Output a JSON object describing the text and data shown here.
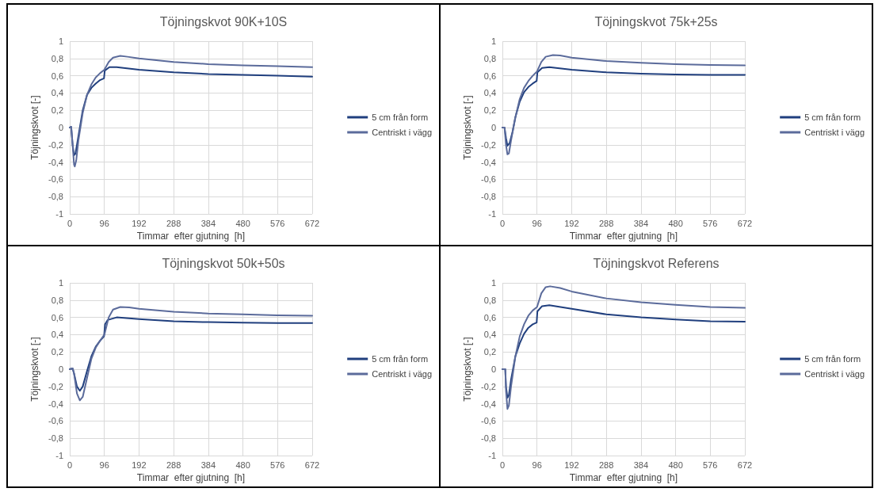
{
  "chart_data": [
    {
      "type": "line",
      "title": "Töjningskvot 90K+10S",
      "xlabel": "Timmar  efter gjutning  [h]",
      "ylabel": "Töjningskvot [-]",
      "xlim": [
        0,
        672
      ],
      "xticks": [
        0,
        96,
        192,
        288,
        384,
        480,
        576,
        672
      ],
      "ylim": [
        -1,
        1
      ],
      "yticks": [
        -1,
        {
          "value": -0.8,
          "label": "-0,8"
        },
        {
          "value": -0.6,
          "label": "-0,6"
        },
        {
          "value": -0.4,
          "label": "-0,4"
        },
        {
          "value": -0.2,
          "label": "-0,2"
        },
        0,
        {
          "value": 0.2,
          "label": "0,2"
        },
        {
          "value": 0.4,
          "label": "0,4"
        },
        {
          "value": 0.6,
          "label": "0,6"
        },
        {
          "value": 0.8,
          "label": "0,8"
        },
        1
      ],
      "grid": true,
      "legend": "right",
      "marker": "none",
      "line_style": "solid",
      "series": [
        {
          "name": "5 cm från form",
          "color": "#203f7e",
          "x": [
            0,
            4,
            8,
            12,
            16,
            24,
            36,
            48,
            60,
            72,
            84,
            95,
            97,
            110,
            130,
            192,
            288,
            384,
            480,
            576,
            672
          ],
          "values": [
            0,
            0.01,
            -0.2,
            -0.32,
            -0.3,
            -0.1,
            0.2,
            0.38,
            0.46,
            0.51,
            0.55,
            0.57,
            0.66,
            0.7,
            0.7,
            0.67,
            0.64,
            0.62,
            0.61,
            0.6,
            0.59
          ]
        },
        {
          "name": "Centriskt i vägg",
          "color": "#5b6b9b",
          "x": [
            0,
            4,
            8,
            12,
            14,
            18,
            24,
            36,
            48,
            60,
            72,
            84,
            96,
            108,
            120,
            140,
            160,
            192,
            288,
            384,
            480,
            576,
            672
          ],
          "values": [
            0,
            0.01,
            -0.2,
            -0.43,
            -0.45,
            -0.38,
            -0.15,
            0.17,
            0.38,
            0.5,
            0.58,
            0.63,
            0.67,
            0.76,
            0.81,
            0.83,
            0.82,
            0.8,
            0.76,
            0.735,
            0.72,
            0.71,
            0.7
          ]
        }
      ]
    },
    {
      "type": "line",
      "title": "Töjningskvot 75k+25s",
      "xlabel": "Timmar  efter gjutning  [h]",
      "ylabel": "Töjningskvot [-]",
      "xlim": [
        0,
        672
      ],
      "xticks": [
        0,
        96,
        192,
        288,
        384,
        480,
        576,
        672
      ],
      "ylim": [
        -1,
        1
      ],
      "yticks": [
        -1,
        {
          "value": -0.8,
          "label": "-0,8"
        },
        {
          "value": -0.6,
          "label": "-0,6"
        },
        {
          "value": -0.4,
          "label": "-0,4"
        },
        {
          "value": -0.2,
          "label": "-0,2"
        },
        0,
        {
          "value": 0.2,
          "label": "0,2"
        },
        {
          "value": 0.4,
          "label": "0,4"
        },
        {
          "value": 0.6,
          "label": "0,6"
        },
        {
          "value": 0.8,
          "label": "0,8"
        },
        1
      ],
      "grid": true,
      "legend": "right",
      "marker": "none",
      "line_style": "solid",
      "series": [
        {
          "name": "5 cm från form",
          "color": "#203f7e",
          "x": [
            0,
            6,
            10,
            14,
            20,
            28,
            36,
            48,
            60,
            72,
            84,
            95,
            97,
            110,
            130,
            192,
            288,
            384,
            480,
            576,
            672
          ],
          "values": [
            0,
            0,
            -0.12,
            -0.21,
            -0.18,
            -0.05,
            0.12,
            0.3,
            0.41,
            0.47,
            0.51,
            0.54,
            0.64,
            0.69,
            0.7,
            0.67,
            0.64,
            0.625,
            0.615,
            0.61,
            0.61
          ]
        },
        {
          "name": "Centriskt i vägg",
          "color": "#5b6b9b",
          "x": [
            0,
            6,
            10,
            14,
            18,
            24,
            36,
            48,
            60,
            72,
            84,
            96,
            108,
            120,
            140,
            160,
            192,
            288,
            384,
            480,
            576,
            672
          ],
          "values": [
            0,
            0,
            -0.2,
            -0.31,
            -0.3,
            -0.15,
            0.12,
            0.33,
            0.46,
            0.54,
            0.6,
            0.65,
            0.76,
            0.82,
            0.84,
            0.835,
            0.81,
            0.77,
            0.75,
            0.735,
            0.725,
            0.72
          ]
        }
      ]
    },
    {
      "type": "line",
      "title": "Töjningskvot 50k+50s",
      "xlabel": "Timmar  efter gjutning  [h]",
      "ylabel": "Töjningskvot [-]",
      "xlim": [
        0,
        672
      ],
      "xticks": [
        0,
        96,
        192,
        288,
        384,
        480,
        576,
        672
      ],
      "ylim": [
        -1,
        1
      ],
      "yticks": [
        -1,
        {
          "value": -0.8,
          "label": "-0,8"
        },
        {
          "value": -0.6,
          "label": "-0,6"
        },
        {
          "value": -0.4,
          "label": "-0,4"
        },
        {
          "value": -0.2,
          "label": "-0,2"
        },
        0,
        {
          "value": 0.2,
          "label": "0,2"
        },
        {
          "value": 0.4,
          "label": "0,4"
        },
        {
          "value": 0.6,
          "label": "0,6"
        },
        {
          "value": 0.8,
          "label": "0,8"
        },
        1
      ],
      "grid": true,
      "legend": "right",
      "marker": "none",
      "line_style": "solid",
      "series": [
        {
          "name": "5 cm från form",
          "color": "#203f7e",
          "x": [
            0,
            8,
            12,
            20,
            28,
            36,
            48,
            60,
            72,
            84,
            95,
            98,
            105,
            130,
            192,
            288,
            384,
            480,
            576,
            672
          ],
          "values": [
            0,
            0.01,
            -0.05,
            -0.2,
            -0.25,
            -0.2,
            -0.02,
            0.15,
            0.26,
            0.33,
            0.38,
            0.52,
            0.57,
            0.6,
            0.58,
            0.555,
            0.545,
            0.54,
            0.535,
            0.535
          ]
        },
        {
          "name": "Centriskt i vägg",
          "color": "#5b6b9b",
          "x": [
            0,
            8,
            12,
            20,
            28,
            36,
            48,
            60,
            72,
            84,
            96,
            108,
            120,
            140,
            165,
            192,
            288,
            384,
            480,
            576,
            672
          ],
          "values": [
            0,
            0.01,
            -0.05,
            -0.28,
            -0.36,
            -0.32,
            -0.1,
            0.12,
            0.25,
            0.33,
            0.4,
            0.6,
            0.69,
            0.72,
            0.715,
            0.7,
            0.665,
            0.645,
            0.635,
            0.625,
            0.62
          ]
        }
      ]
    },
    {
      "type": "line",
      "title": "Töjningskvot Referens",
      "xlabel": "Timmar  efter gjutning  [h]",
      "ylabel": "Töjningskvot [-]",
      "xlim": [
        0,
        672
      ],
      "xticks": [
        0,
        96,
        192,
        288,
        384,
        480,
        576,
        672
      ],
      "ylim": [
        -1,
        1
      ],
      "yticks": [
        -1,
        {
          "value": -0.8,
          "label": "-0,8"
        },
        {
          "value": -0.6,
          "label": "-0,6"
        },
        {
          "value": -0.4,
          "label": "-0,4"
        },
        {
          "value": -0.2,
          "label": "-0,2"
        },
        0,
        {
          "value": 0.2,
          "label": "0,2"
        },
        {
          "value": 0.4,
          "label": "0,4"
        },
        {
          "value": 0.6,
          "label": "0,6"
        },
        {
          "value": 0.8,
          "label": "0,8"
        },
        1
      ],
      "grid": true,
      "legend": "right",
      "marker": "none",
      "line_style": "solid",
      "series": [
        {
          "name": "5 cm från form",
          "color": "#203f7e",
          "x": [
            0,
            8,
            10,
            14,
            18,
            24,
            36,
            48,
            60,
            72,
            84,
            95,
            97,
            110,
            130,
            192,
            288,
            384,
            480,
            576,
            672
          ],
          "values": [
            0,
            0,
            -0.2,
            -0.33,
            -0.3,
            -0.12,
            0.15,
            0.3,
            0.41,
            0.48,
            0.52,
            0.54,
            0.67,
            0.73,
            0.74,
            0.7,
            0.635,
            0.6,
            0.575,
            0.555,
            0.55
          ]
        },
        {
          "name": "Centriskt i vägg",
          "color": "#5b6b9b",
          "x": [
            0,
            8,
            10,
            14,
            18,
            24,
            36,
            48,
            60,
            72,
            84,
            96,
            108,
            120,
            132,
            160,
            192,
            288,
            384,
            480,
            576,
            672
          ],
          "values": [
            0,
            0,
            -0.25,
            -0.46,
            -0.42,
            -0.2,
            0.15,
            0.38,
            0.52,
            0.62,
            0.68,
            0.72,
            0.88,
            0.95,
            0.96,
            0.94,
            0.9,
            0.82,
            0.775,
            0.745,
            0.72,
            0.71
          ]
        }
      ]
    }
  ]
}
